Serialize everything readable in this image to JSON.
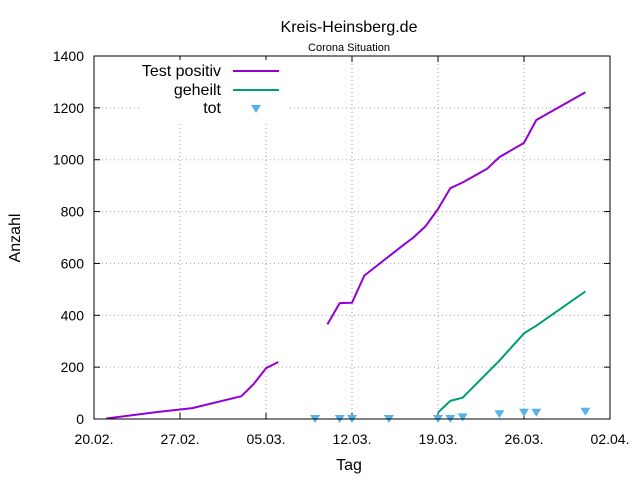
{
  "chart_data": {
    "type": "line",
    "title": "Kreis-Heinsberg.de",
    "subtitle": "Corona Situation",
    "xlabel": "Tag",
    "ylabel": "Anzahl",
    "x_ticks": [
      "20.02.",
      "27.02.",
      "05.03.",
      "12.03.",
      "19.03.",
      "26.03.",
      "02.04."
    ],
    "y_ticks": [
      "0",
      "200",
      "400",
      "600",
      "800",
      "1000",
      "1200",
      "1400"
    ],
    "ylim": [
      0,
      1400
    ],
    "xlim": [
      "2020-02-20",
      "2020-04-02"
    ],
    "grid": true,
    "legend_position": "top-left",
    "series": [
      {
        "name": "Test positiv",
        "style": "line",
        "color": "#9400d3",
        "points": [
          [
            "2020-02-21",
            2
          ],
          [
            "2020-02-23",
            14
          ],
          [
            "2020-02-25",
            26
          ],
          [
            "2020-02-28",
            42
          ],
          [
            "2020-03-03",
            88
          ],
          [
            "2020-03-04",
            135
          ],
          [
            "2020-03-05",
            196
          ],
          [
            "2020-03-06",
            220
          ],
          null,
          [
            "2020-03-10",
            365
          ],
          [
            "2020-03-11",
            447
          ],
          [
            "2020-03-12",
            448
          ],
          [
            "2020-03-13",
            553
          ],
          [
            "2020-03-16",
            664
          ],
          [
            "2020-03-17",
            700
          ],
          [
            "2020-03-18",
            744
          ],
          [
            "2020-03-19",
            810
          ],
          [
            "2020-03-20",
            890
          ],
          [
            "2020-03-21",
            912
          ],
          [
            "2020-03-23",
            965
          ],
          [
            "2020-03-24",
            1010
          ],
          [
            "2020-03-26",
            1065
          ],
          [
            "2020-03-27",
            1153
          ],
          [
            "2020-03-31",
            1260
          ]
        ]
      },
      {
        "name": "geheilt",
        "style": "line",
        "color": "#009e73",
        "points": [
          [
            "2020-03-19",
            25
          ],
          [
            "2020-03-20",
            70
          ],
          [
            "2020-03-21",
            82
          ],
          [
            "2020-03-22",
            130
          ],
          [
            "2020-03-24",
            225
          ],
          [
            "2020-03-26",
            330
          ],
          [
            "2020-03-27",
            360
          ],
          [
            "2020-03-31",
            492
          ]
        ]
      },
      {
        "name": "tot",
        "style": "triangle-down",
        "color": "#56b4e9",
        "points": [
          [
            "2020-03-09",
            0
          ],
          [
            "2020-03-11",
            0
          ],
          [
            "2020-03-12",
            0
          ],
          [
            "2020-03-15",
            0
          ],
          [
            "2020-03-19",
            0
          ],
          [
            "2020-03-20",
            0
          ],
          [
            "2020-03-21",
            6
          ],
          [
            "2020-03-24",
            18
          ],
          [
            "2020-03-26",
            24
          ],
          [
            "2020-03-27",
            24
          ],
          [
            "2020-03-31",
            28
          ]
        ]
      }
    ]
  }
}
